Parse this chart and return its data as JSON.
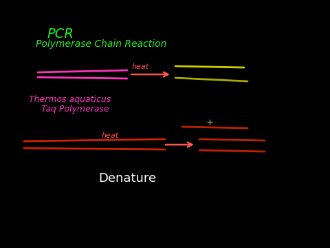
{
  "background_color": "#000000",
  "title_pcr": "PCR",
  "title_full": "Polymerase Chain Reaction",
  "title_color": "#22ee22",
  "thermos_text": "Thermos aquaticus",
  "taq_text": "  Taq Polymerase",
  "thermos_color": "#ff33bb",
  "denature_text": "Denature",
  "denature_color": "#ffffff",
  "heat_color": "#ff5555",
  "arrow_color": "#ff5555",
  "top_left_strand_color": "#ff33bb",
  "right_strand1_color": "#cccc00",
  "right_strand2_color": "#aaaa00",
  "bottom_left_strand_color": "#cc2200",
  "bottom_right_strand_color": "#bb2200",
  "cursor_color": "#888888"
}
